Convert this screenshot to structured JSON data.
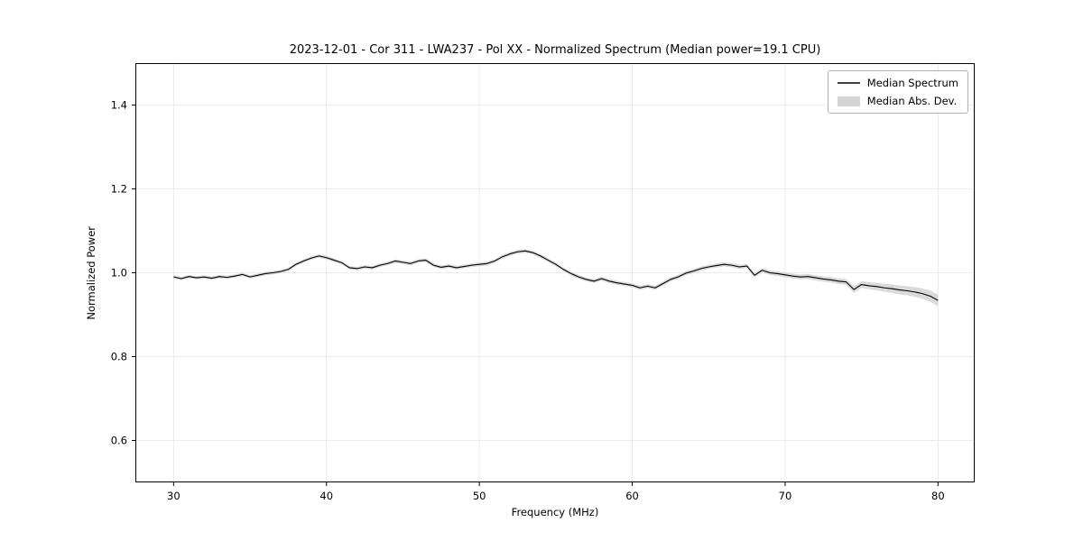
{
  "chart_data": {
    "type": "line",
    "title": "2023-12-01 - Cor 311 - LWA237 - Pol XX - Normalized Spectrum (Median power=19.1 CPU)",
    "xlabel": "Frequency (MHz)",
    "ylabel": "Normalized Power",
    "xlim": [
      27.5,
      82.4
    ],
    "ylim": [
      0.5,
      1.5
    ],
    "xticks": [
      30,
      40,
      50,
      60,
      70,
      80
    ],
    "yticks": [
      0.6,
      0.8,
      1.0,
      1.2,
      1.4
    ],
    "grid": true,
    "colors": {
      "line": "#000000",
      "band": "#d3d3d3",
      "grid": "#e6e6e6",
      "spine": "#000000"
    },
    "legend": {
      "position": "upper right",
      "entries": [
        {
          "label": "Median Spectrum",
          "type": "line",
          "color": "#000000"
        },
        {
          "label": "Median Abs. Dev.",
          "type": "patch",
          "color": "#d3d3d3"
        }
      ]
    },
    "series": [
      {
        "name": "Median Spectrum",
        "x_start": 30.0,
        "x_step": 0.5,
        "y": [
          0.99,
          0.986,
          0.991,
          0.988,
          0.99,
          0.987,
          0.991,
          0.989,
          0.992,
          0.996,
          0.99,
          0.994,
          0.998,
          1.0,
          1.003,
          1.008,
          1.02,
          1.028,
          1.035,
          1.04,
          1.036,
          1.03,
          1.024,
          1.012,
          1.01,
          1.014,
          1.012,
          1.018,
          1.022,
          1.028,
          1.025,
          1.022,
          1.028,
          1.03,
          1.018,
          1.013,
          1.016,
          1.012,
          1.015,
          1.018,
          1.02,
          1.022,
          1.028,
          1.038,
          1.045,
          1.05,
          1.052,
          1.048,
          1.04,
          1.03,
          1.02,
          1.008,
          0.998,
          0.99,
          0.984,
          0.98,
          0.986,
          0.98,
          0.976,
          0.973,
          0.97,
          0.964,
          0.968,
          0.964,
          0.974,
          0.984,
          0.99,
          0.999,
          1.004,
          1.01,
          1.014,
          1.017,
          1.02,
          1.018,
          1.014,
          1.016,
          0.994,
          1.006,
          1.0,
          0.998,
          0.995,
          0.992,
          0.99,
          0.991,
          0.988,
          0.985,
          0.983,
          0.98,
          0.978,
          0.96,
          0.972,
          0.969,
          0.967,
          0.964,
          0.962,
          0.959,
          0.957,
          0.954,
          0.95,
          0.944,
          0.934
        ]
      },
      {
        "name": "Median Abs. Dev.",
        "band_halfwidth_points": [
          [
            30,
            0.004
          ],
          [
            55,
            0.0045
          ],
          [
            62,
            0.005
          ],
          [
            68,
            0.005
          ],
          [
            71,
            0.006
          ],
          [
            74,
            0.007
          ],
          [
            76,
            0.009
          ],
          [
            78,
            0.011
          ],
          [
            80,
            0.014
          ]
        ]
      }
    ]
  }
}
